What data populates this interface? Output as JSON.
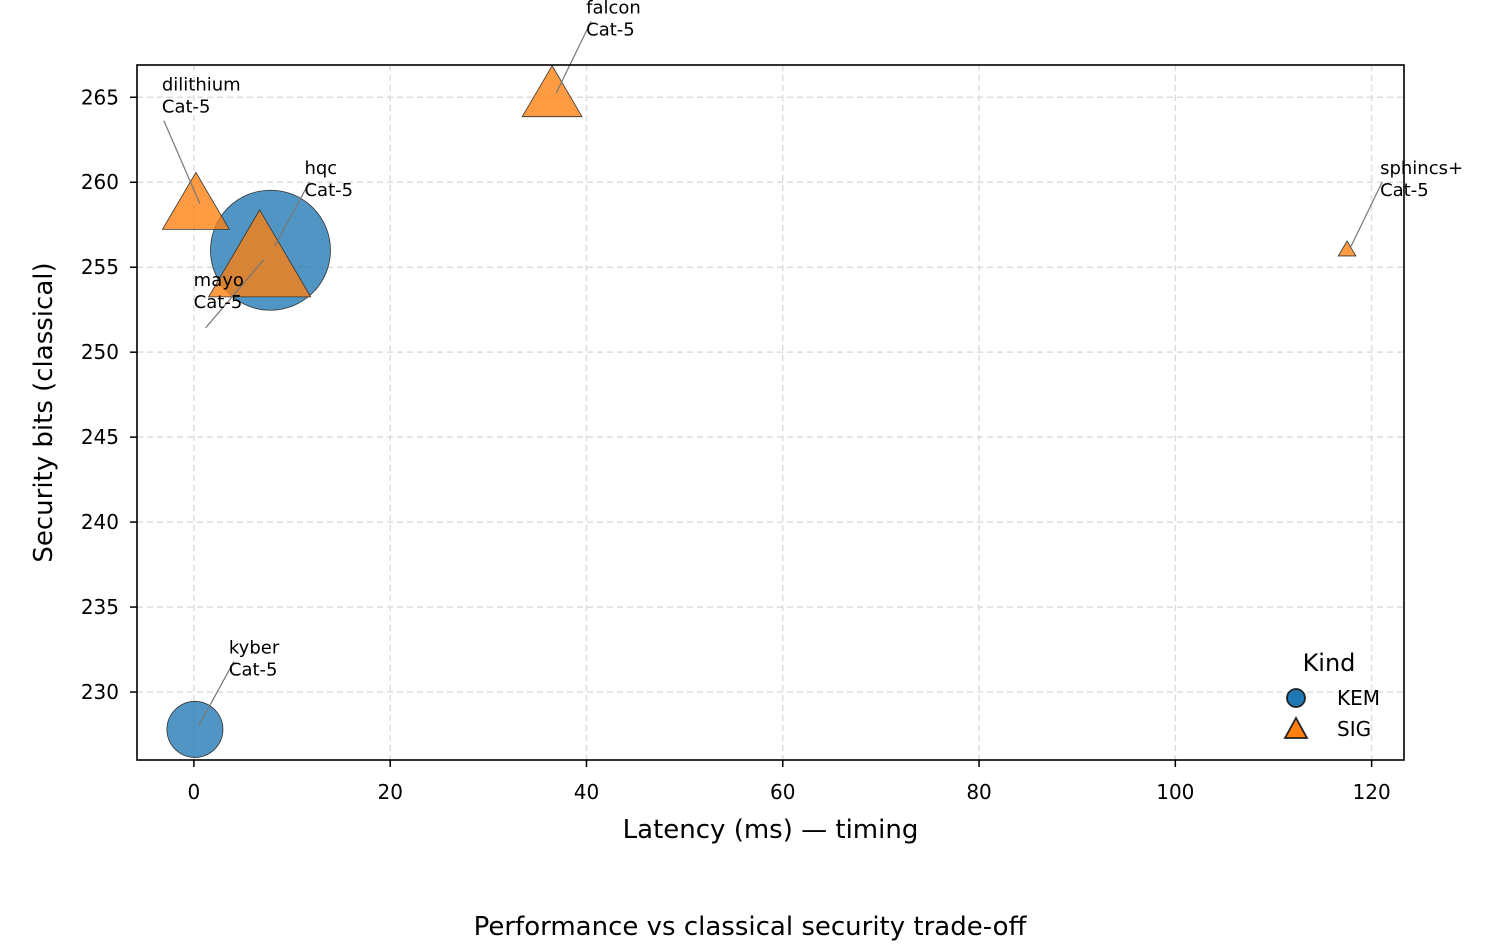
{
  "caption": "Performance vs classical security trade-off",
  "chart_data": {
    "type": "scatter",
    "title": "",
    "xlabel": "Latency (ms) — timing",
    "ylabel": "Security bits (classical)",
    "xlim": [
      -5.8,
      123.3
    ],
    "ylim": [
      226.0,
      266.9
    ],
    "xticks": [
      0,
      20,
      40,
      60,
      80,
      100,
      120
    ],
    "yticks": [
      230,
      235,
      240,
      245,
      250,
      255,
      260,
      265
    ],
    "grid": true,
    "legend": {
      "title": "Kind",
      "placement": "bottom-right",
      "entries": [
        {
          "label": "KEM",
          "marker": "circle",
          "color": "#1f77b4"
        },
        {
          "label": "SIG",
          "marker": "triangle",
          "color": "#ff7f0e"
        }
      ]
    },
    "points": [
      {
        "name": "hqc",
        "kind": "KEM",
        "x": 7.8,
        "y": 256.0,
        "category": "Cat-5"
      },
      {
        "name": "kyber",
        "kind": "KEM",
        "x": 0.1,
        "y": 227.8,
        "category": "Cat-5"
      },
      {
        "name": "dilithium",
        "kind": "SIG",
        "x": 0.2,
        "y": 258.5,
        "category": "Cat-5"
      },
      {
        "name": "mayo",
        "kind": "SIG",
        "x": 6.7,
        "y": 255.2,
        "category": "Cat-5"
      },
      {
        "name": "falcon",
        "kind": "SIG",
        "x": 36.5,
        "y": 265.0,
        "category": "Cat-5"
      },
      {
        "name": "sphincs+",
        "kind": "SIG",
        "x": 117.5,
        "y": 256.0,
        "category": "Cat-5"
      }
    ],
    "colors": {
      "KEM": "#1f77b4",
      "SIG": "#ff7f0e"
    }
  }
}
